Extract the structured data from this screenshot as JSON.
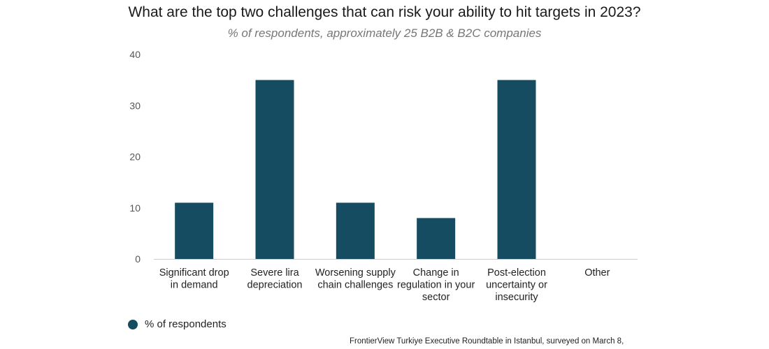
{
  "chart_data": {
    "type": "bar",
    "title": "What are the top two challenges that can risk your ability to hit targets in 2023?",
    "subtitle": "% of respondents, approximately 25 B2B & B2C companies",
    "categories": [
      [
        "Significant drop",
        "in demand"
      ],
      [
        "Severe lira",
        "depreciation"
      ],
      [
        "Worsening supply",
        "chain challenges"
      ],
      [
        "Change in",
        "regulation in your",
        "sector"
      ],
      [
        "Post-election",
        "uncertainty or",
        "insecurity"
      ],
      [
        "Other"
      ]
    ],
    "series": [
      {
        "name": "% of respondents",
        "values": [
          11,
          35,
          11,
          8,
          35,
          0
        ]
      }
    ],
    "ylim": [
      0,
      40
    ],
    "yticks": [
      0,
      10,
      20,
      30,
      40
    ],
    "grid": false,
    "legend_position": "bottom-left",
    "bar_color": "#154c61",
    "source": "FrontierView Turkiye Executive Roundtable in Istanbul, surveyed on March 8,"
  }
}
